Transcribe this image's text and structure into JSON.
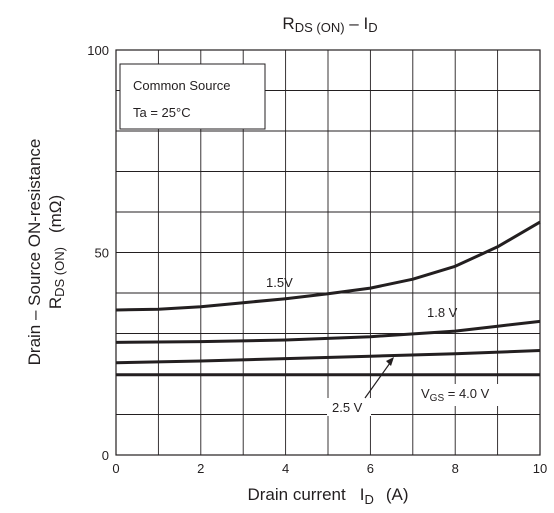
{
  "chart_data": {
    "type": "line",
    "title": {
      "main": "R",
      "main_sub": "DS (ON)",
      "dash": " – ",
      "tail": "I",
      "tail_sub": "D"
    },
    "xlabel": {
      "text": "Drain current",
      "symbol": "I",
      "sub": "D",
      "unit": "(A)"
    },
    "ylabel": {
      "line1": "Drain – Source ON-resistance",
      "line2_main": "R",
      "line2_sub": "DS (ON)",
      "unit": "(mΩ)"
    },
    "xlim": [
      0,
      10
    ],
    "ylim": [
      0,
      100
    ],
    "x_ticks": [
      "0",
      "2",
      "4",
      "6",
      "8",
      "10"
    ],
    "y_ticks": [
      "0",
      "50",
      "100"
    ],
    "grid": true,
    "conditions": [
      "Common Source",
      "Ta = 25°C"
    ],
    "series": [
      {
        "name": "1.5V",
        "x": [
          0,
          1,
          2,
          3,
          4,
          5,
          6,
          7,
          8,
          9,
          10
        ],
        "y": [
          35.8,
          36.0,
          36.6,
          37.6,
          38.6,
          39.8,
          41.2,
          43.4,
          46.6,
          51.4,
          57.5
        ]
      },
      {
        "name": "1.8 V",
        "x": [
          0,
          2,
          4,
          6,
          8,
          9,
          10
        ],
        "y": [
          27.8,
          28.0,
          28.4,
          29.2,
          30.6,
          31.8,
          33.0
        ]
      },
      {
        "name": "2.5 V",
        "x": [
          0,
          2,
          4,
          6,
          8,
          10
        ],
        "y": [
          22.8,
          23.2,
          23.8,
          24.4,
          25.0,
          25.8
        ]
      },
      {
        "name": "V_GS = 4.0 V",
        "x": [
          0,
          10
        ],
        "y": [
          19.8,
          19.8
        ]
      }
    ],
    "annotations": {
      "s1": "1.5V",
      "s2": "1.8 V",
      "s3": "2.5 V",
      "s4_main": "V",
      "s4_sub": "GS",
      "s4_rest": " = 4.0 V"
    },
    "colors": {
      "line": "#231f20",
      "grid": "#231f20",
      "background": "#ffffff"
    }
  }
}
